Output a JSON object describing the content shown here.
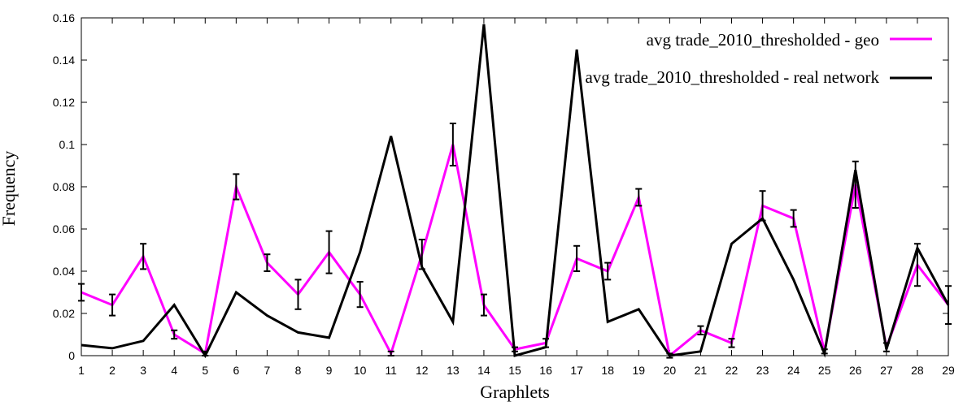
{
  "chart_data": {
    "type": "line",
    "title": "",
    "xlabel": "Graphlets",
    "ylabel": "Frequency",
    "xlim": [
      1,
      29
    ],
    "ylim": [
      0,
      0.16
    ],
    "x_ticks": [
      "1",
      "2",
      "3",
      "4",
      "5",
      "6",
      "7",
      "8",
      "9",
      "10",
      "11",
      "12",
      "13",
      "14",
      "15",
      "16",
      "17",
      "18",
      "19",
      "20",
      "21",
      "22",
      "23",
      "24",
      "25",
      "26",
      "27",
      "28",
      "29"
    ],
    "y_ticks": [
      "0",
      "0.02",
      "0.04",
      "0.06",
      "0.08",
      "0.1",
      "0.12",
      "0.14",
      "0.16"
    ],
    "grid": false,
    "legend_position": "top-right",
    "x": [
      1,
      2,
      3,
      4,
      5,
      6,
      7,
      8,
      9,
      10,
      11,
      12,
      13,
      14,
      15,
      16,
      17,
      18,
      19,
      20,
      21,
      22,
      23,
      24,
      25,
      26,
      27,
      28,
      29
    ],
    "series": [
      {
        "name": "avg trade_2010_thresholded - geo",
        "color": "#ff00ff",
        "values": [
          0.03,
          0.024,
          0.047,
          0.01,
          0.001,
          0.08,
          0.044,
          0.029,
          0.049,
          0.029,
          0.001,
          0.048,
          0.1,
          0.024,
          0.003,
          0.006,
          0.046,
          0.04,
          0.075,
          0.0,
          0.012,
          0.006,
          0.071,
          0.065,
          0.002,
          0.081,
          0.004,
          0.043,
          0.024
        ],
        "error": [
          0.004,
          0.005,
          0.006,
          0.002,
          0.001,
          0.006,
          0.004,
          0.007,
          0.01,
          0.006,
          0.001,
          0.007,
          0.01,
          0.005,
          0.001,
          0.002,
          0.006,
          0.004,
          0.004,
          0.001,
          0.002,
          0.002,
          0.007,
          0.004,
          0.001,
          0.011,
          0.002,
          0.01,
          0.009
        ]
      },
      {
        "name": "avg trade_2010_thresholded - real network",
        "color": "#000000",
        "values": [
          0.005,
          0.0035,
          0.007,
          0.024,
          0.0,
          0.03,
          0.019,
          0.011,
          0.0085,
          0.049,
          0.104,
          0.042,
          0.016,
          0.157,
          0.0,
          0.004,
          0.145,
          0.016,
          0.022,
          0.0,
          0.002,
          0.053,
          0.065,
          0.036,
          0.001,
          0.088,
          0.003,
          0.051,
          0.024
        ]
      }
    ]
  }
}
